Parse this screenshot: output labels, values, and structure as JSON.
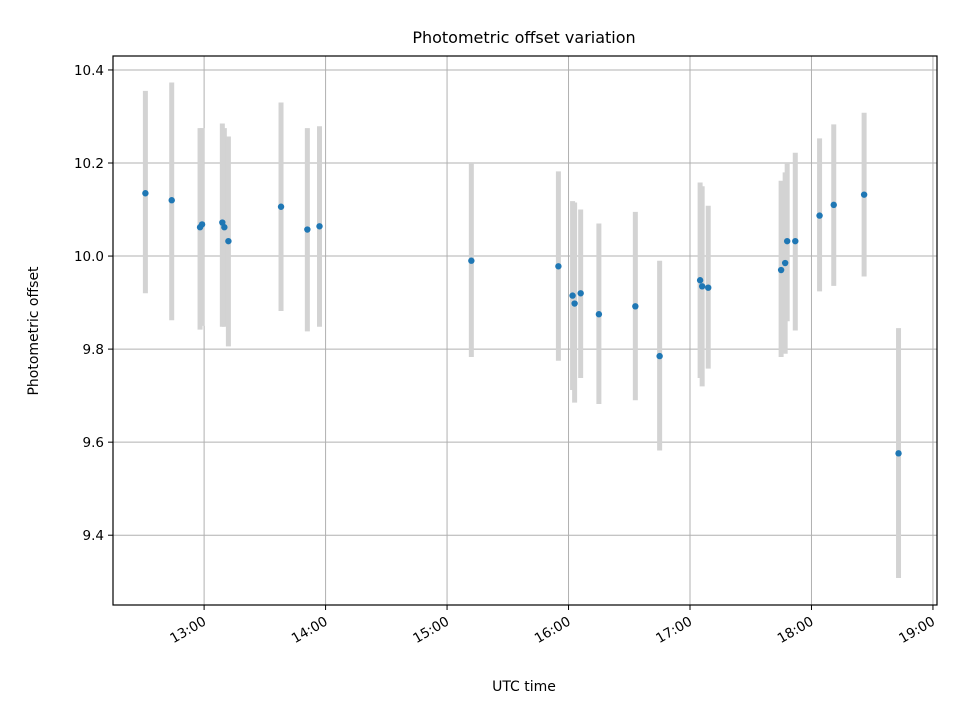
{
  "chart_data": {
    "type": "scatter",
    "title": "Photometric offset variation",
    "xlabel": "UTC time",
    "ylabel": "Photometric offset",
    "x_ticks": [
      "13:00",
      "14:00",
      "15:00",
      "16:00",
      "17:00",
      "18:00",
      "19:00"
    ],
    "y_ticks": [
      "9.4",
      "9.6",
      "9.8",
      "10.0",
      "10.2",
      "10.4"
    ],
    "xlim": [
      "12:15",
      "19:02"
    ],
    "ylim": [
      9.25,
      10.43
    ],
    "grid": true,
    "colors": {
      "points": "#1f77b4",
      "error_bars": "#d3d3d3"
    },
    "points": [
      {
        "x": "12:31",
        "y": 10.135,
        "ylow": 9.92,
        "yhigh": 10.355
      },
      {
        "x": "12:44",
        "y": 10.12,
        "ylow": 9.862,
        "yhigh": 10.373
      },
      {
        "x": "12:58",
        "y": 10.062,
        "ylow": 9.842,
        "yhigh": 10.275
      },
      {
        "x": "12:59",
        "y": 10.068,
        "ylow": 9.85,
        "yhigh": 10.275
      },
      {
        "x": "13:09",
        "y": 10.072,
        "ylow": 9.848,
        "yhigh": 10.285
      },
      {
        "x": "13:10",
        "y": 10.062,
        "ylow": 9.848,
        "yhigh": 10.275
      },
      {
        "x": "13:12",
        "y": 10.032,
        "ylow": 9.806,
        "yhigh": 10.257
      },
      {
        "x": "13:38",
        "y": 10.106,
        "ylow": 9.882,
        "yhigh": 10.33
      },
      {
        "x": "13:51",
        "y": 10.057,
        "ylow": 9.838,
        "yhigh": 10.275
      },
      {
        "x": "13:57",
        "y": 10.064,
        "ylow": 9.848,
        "yhigh": 10.279
      },
      {
        "x": "15:12",
        "y": 9.99,
        "ylow": 9.783,
        "yhigh": 10.2
      },
      {
        "x": "15:55",
        "y": 9.978,
        "ylow": 9.775,
        "yhigh": 10.182
      },
      {
        "x": "16:02",
        "y": 9.915,
        "ylow": 9.712,
        "yhigh": 10.118
      },
      {
        "x": "16:03",
        "y": 9.898,
        "ylow": 9.685,
        "yhigh": 10.115
      },
      {
        "x": "16:06",
        "y": 9.92,
        "ylow": 9.738,
        "yhigh": 10.1
      },
      {
        "x": "16:15",
        "y": 9.875,
        "ylow": 9.682,
        "yhigh": 10.07
      },
      {
        "x": "16:33",
        "y": 9.892,
        "ylow": 9.69,
        "yhigh": 10.095
      },
      {
        "x": "16:45",
        "y": 9.785,
        "ylow": 9.582,
        "yhigh": 9.99
      },
      {
        "x": "17:05",
        "y": 9.948,
        "ylow": 9.738,
        "yhigh": 10.158
      },
      {
        "x": "17:06",
        "y": 9.935,
        "ylow": 9.72,
        "yhigh": 10.15
      },
      {
        "x": "17:09",
        "y": 9.932,
        "ylow": 9.758,
        "yhigh": 10.108
      },
      {
        "x": "17:45",
        "y": 9.97,
        "ylow": 9.783,
        "yhigh": 10.162
      },
      {
        "x": "17:47",
        "y": 9.985,
        "ylow": 9.79,
        "yhigh": 10.18
      },
      {
        "x": "17:48",
        "y": 10.032,
        "ylow": 9.86,
        "yhigh": 10.2
      },
      {
        "x": "17:52",
        "y": 10.032,
        "ylow": 9.84,
        "yhigh": 10.222
      },
      {
        "x": "18:04",
        "y": 10.087,
        "ylow": 9.924,
        "yhigh": 10.253
      },
      {
        "x": "18:11",
        "y": 10.11,
        "ylow": 9.936,
        "yhigh": 10.283
      },
      {
        "x": "18:26",
        "y": 10.132,
        "ylow": 9.956,
        "yhigh": 10.308
      },
      {
        "x": "18:43",
        "y": 9.576,
        "ylow": 9.308,
        "yhigh": 9.845
      }
    ]
  }
}
